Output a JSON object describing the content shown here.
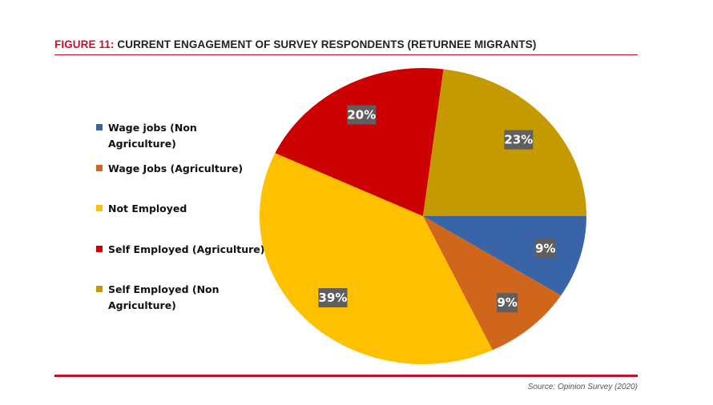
{
  "figure": {
    "title_prefix": "FIGURE 11:",
    "title_text": " CURRENT ENGAGEMENT OF SURVEY RESPONDENTS (RETURNEE MIGRANTS)",
    "source": "Source: Opinion Survey (2020)"
  },
  "chart_data": {
    "type": "pie",
    "title": "FIGURE 11: CURRENT ENGAGEMENT OF SURVEY RESPONDENTS (RETURNEE MIGRANTS)",
    "legend_position": "left",
    "categories": [
      "Wage jobs (Non Agriculture)",
      "Wage Jobs (Agriculture)",
      "Not Employed",
      "Self Employed (Agriculture)",
      "Self Employed (Non Agriculture)"
    ],
    "values": [
      9,
      9,
      39,
      20,
      23
    ],
    "labels": [
      "9%",
      "9%",
      "39%",
      "20%",
      "23%"
    ],
    "colors": [
      "#3a64a8",
      "#d0661b",
      "#ffc000",
      "#cc0000",
      "#c49a00"
    ]
  },
  "legend": {
    "items": [
      "Wage jobs (Non Agriculture)",
      "Wage Jobs (Agriculture)",
      "Not Employed",
      "Self Employed (Agriculture)",
      "Self Employed (Non Agriculture)"
    ]
  }
}
